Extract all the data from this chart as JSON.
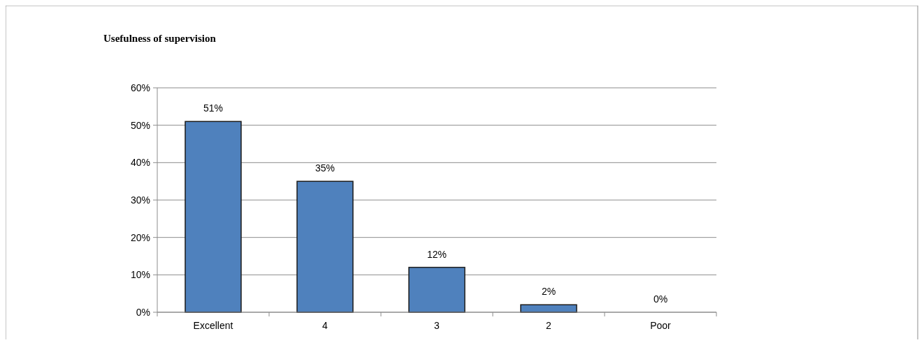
{
  "chart_data": {
    "type": "bar",
    "title": "Usefulness  of supervision",
    "categories": [
      "Excellent",
      "4",
      "3",
      "2",
      "Poor"
    ],
    "values": [
      51,
      35,
      12,
      2,
      0
    ],
    "color": "#4f81bd",
    "ylim": [
      0,
      60
    ],
    "yticks": [
      {
        "value": 0,
        "label": "0%"
      },
      {
        "value": 10,
        "label": "10%"
      },
      {
        "value": 20,
        "label": "20%"
      },
      {
        "value": 30,
        "label": "30%"
      },
      {
        "value": 40,
        "label": "40%"
      },
      {
        "value": 50,
        "label": "50%"
      },
      {
        "value": 60,
        "label": "60%"
      }
    ],
    "value_labels": [
      "51%",
      "35%",
      "12%",
      "2%",
      "0%"
    ],
    "grid": "y"
  }
}
